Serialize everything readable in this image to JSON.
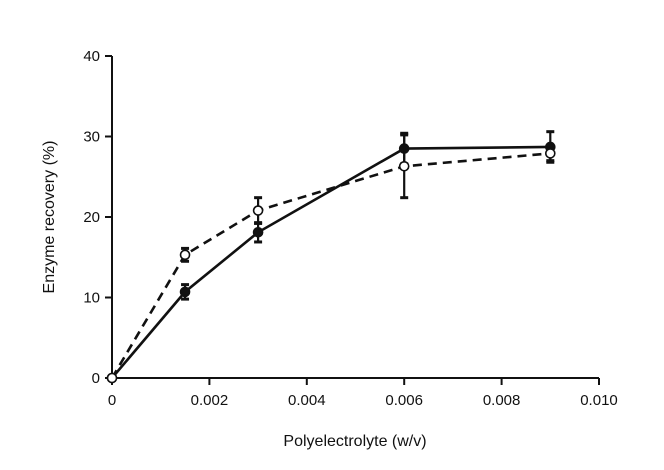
{
  "chart_data": {
    "type": "line",
    "title": "",
    "xlabel": "Polyelectrolyte (w/v)",
    "ylabel": "Enzyme recovery (%)",
    "xlim": [
      0,
      0.01
    ],
    "ylim": [
      0,
      40
    ],
    "x_ticks": [
      0,
      0.002,
      0.004,
      0.006,
      0.008,
      0.01
    ],
    "x_tick_labels": [
      "0",
      "0.002",
      "0.004",
      "0.006",
      "0.008",
      "0.010"
    ],
    "y_ticks": [
      0,
      10,
      20,
      30,
      40
    ],
    "y_tick_labels": [
      "0",
      "10",
      "20",
      "30",
      "40"
    ],
    "grid": false,
    "series": [
      {
        "line_style": "solid",
        "marker": "filled-circle",
        "x": [
          0,
          0.0015,
          0.003,
          0.006,
          0.009
        ],
        "y": [
          0,
          10.7,
          18.1,
          28.5,
          28.7
        ],
        "error": [
          0,
          0.9,
          1.2,
          1.9,
          1.9
        ]
      },
      {
        "line_style": "dashed",
        "marker": "open-circle",
        "x": [
          0,
          0.0015,
          0.003,
          0.006,
          0.009
        ],
        "y": [
          0,
          15.3,
          20.8,
          26.3,
          27.9
        ],
        "error": [
          0,
          0.8,
          1.6,
          3.9,
          0.9
        ]
      }
    ]
  }
}
